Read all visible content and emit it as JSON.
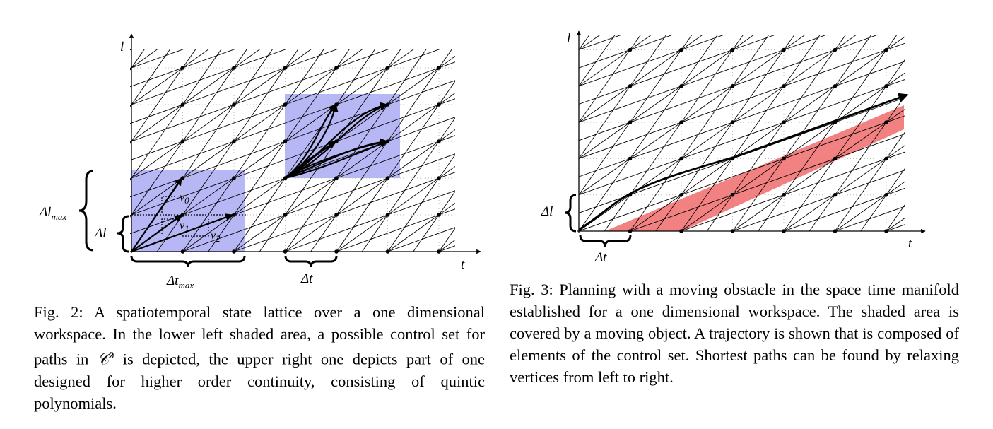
{
  "figure2": {
    "axis_labels": {
      "vertical": "l",
      "horizontal": "t"
    },
    "brace_labels": {
      "delta_l_max": "Δl",
      "delta_l_max_sub": "max",
      "delta_l": "Δl",
      "delta_t_max": "Δt",
      "delta_t_max_sub": "max",
      "delta_t": "Δt"
    },
    "control_labels": {
      "v0": "v",
      "v0_sub": "0",
      "v1": "v",
      "v1_sub": "1",
      "v2": "v",
      "v2_sub": "2"
    },
    "caption": {
      "text_before": "Fig. 2: A spatiotemporal state lattice over a one dimensional workspace. In the lower left shaded area, a possible control set for paths in ",
      "math_symbol": "𝒞",
      "math_sup": "0",
      "text_after": " is depicted, the upper right one depicts part of one designed for higher order continuity, consisting of quintic polynomials."
    },
    "colors": {
      "shaded_region": "#b7b7f5"
    }
  },
  "figure3": {
    "axis_labels": {
      "vertical": "l",
      "horizontal": "t"
    },
    "brace_labels": {
      "delta_l": "Δl",
      "delta_t": "Δt"
    },
    "caption": {
      "text": "Fig. 3: Planning with a moving obstacle in the space time manifold established for a one dimensional workspace. The shaded area is covered by a moving object. A trajectory is shown that is composed of elements of the control set. Shortest paths can be found by relaxing vertices from left to right."
    },
    "colors": {
      "obstacle_region": "#f07070"
    }
  }
}
